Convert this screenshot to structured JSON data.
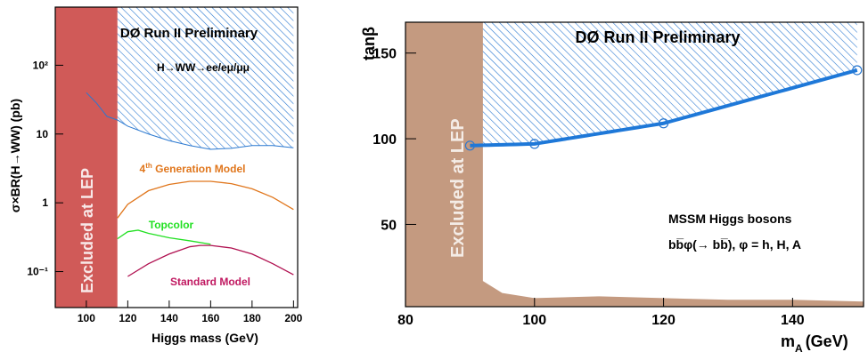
{
  "left_panel": {
    "title": "DØ Run II Preliminary",
    "subtitle": "H→WW→ee/eμ/μμ",
    "excluded_label": "Excluded at LEP",
    "xlabel": "Higgs mass (GeV)",
    "ylabel": "σ×BR(H→WW) (pb)",
    "xticks": [
      "100",
      "120",
      "140",
      "160",
      "180",
      "200"
    ],
    "yticks": [
      "10⁻¹",
      "1",
      "10",
      "10²"
    ],
    "colors": {
      "excluded": "#d05a58",
      "limit": "#1e6fd8",
      "fourth_gen": "#e0761c",
      "topcolor": "#22e022",
      "sm": "#b01050"
    }
  },
  "right_panel": {
    "title": "DØ Run II Preliminary",
    "excluded_label": "Excluded at LEP",
    "xlabel": "m",
    "xlabel_sub": "A",
    "xlabel_unit": "(GeV)",
    "ylabel": "tanβ",
    "legend_line1": "MSSM Higgs bosons",
    "legend_line2": "bb̅φ(→ bb̅), φ = h, H, A",
    "xticks": [
      "80",
      "100",
      "120",
      "140"
    ],
    "yticks": [
      "50",
      "100",
      "150"
    ],
    "colors": {
      "excluded": "#c49a80",
      "limit": "#1e78d8"
    }
  },
  "chart_data": [
    {
      "type": "line",
      "title": "DØ Run II Preliminary",
      "xlabel": "Higgs mass (GeV)",
      "ylabel": "σ×BR(H→WW) (pb)",
      "xlim": [
        85,
        202
      ],
      "ylim": [
        0.03,
        700
      ],
      "log_y": true,
      "excluded_region": {
        "label": "Excluded at LEP",
        "x": [
          85,
          115
        ]
      },
      "series": [
        {
          "name": "",
          "x": [
            100,
            105,
            110,
            115,
            120,
            130,
            140,
            150,
            160,
            170,
            180,
            190,
            200
          ],
          "values": [
            40,
            28,
            18,
            16,
            13,
            10,
            8,
            6.8,
            6.0,
            6.2,
            6.8,
            6.8,
            6.3
          ]
        },
        {
          "name": "4th Generation Model",
          "x": [
            115,
            120,
            130,
            140,
            150,
            160,
            170,
            180,
            190,
            200
          ],
          "values": [
            0.6,
            0.95,
            1.5,
            1.85,
            2.05,
            2.05,
            1.9,
            1.6,
            1.2,
            0.8
          ]
        },
        {
          "name": "Topcolor",
          "x": [
            115,
            120,
            125,
            130,
            140,
            150,
            160
          ],
          "values": [
            0.3,
            0.38,
            0.4,
            0.36,
            0.31,
            0.28,
            0.25
          ]
        },
        {
          "name": "Standard Model",
          "x": [
            120,
            130,
            140,
            150,
            155,
            160,
            170,
            180,
            190,
            200
          ],
          "values": [
            0.085,
            0.13,
            0.18,
            0.23,
            0.24,
            0.24,
            0.22,
            0.18,
            0.13,
            0.09
          ]
        }
      ]
    },
    {
      "type": "line",
      "title": "DØ Run II Preliminary",
      "xlabel": "m_A (GeV)",
      "ylabel": "tanβ",
      "xlim": [
        80,
        151
      ],
      "ylim": [
        2,
        168
      ],
      "excluded_region": {
        "label": "Excluded at LEP",
        "x": [
          80,
          92,
          92,
          95,
          100,
          110,
          120,
          130,
          140,
          151
        ],
        "values": [
          168,
          168,
          17,
          10,
          7,
          8,
          7,
          6,
          6,
          5
        ]
      },
      "series": [
        {
          "name": "MSSM Higgs bosons",
          "x": [
            90,
            100,
            120,
            150
          ],
          "values": [
            96,
            97,
            109,
            140
          ]
        }
      ]
    }
  ]
}
